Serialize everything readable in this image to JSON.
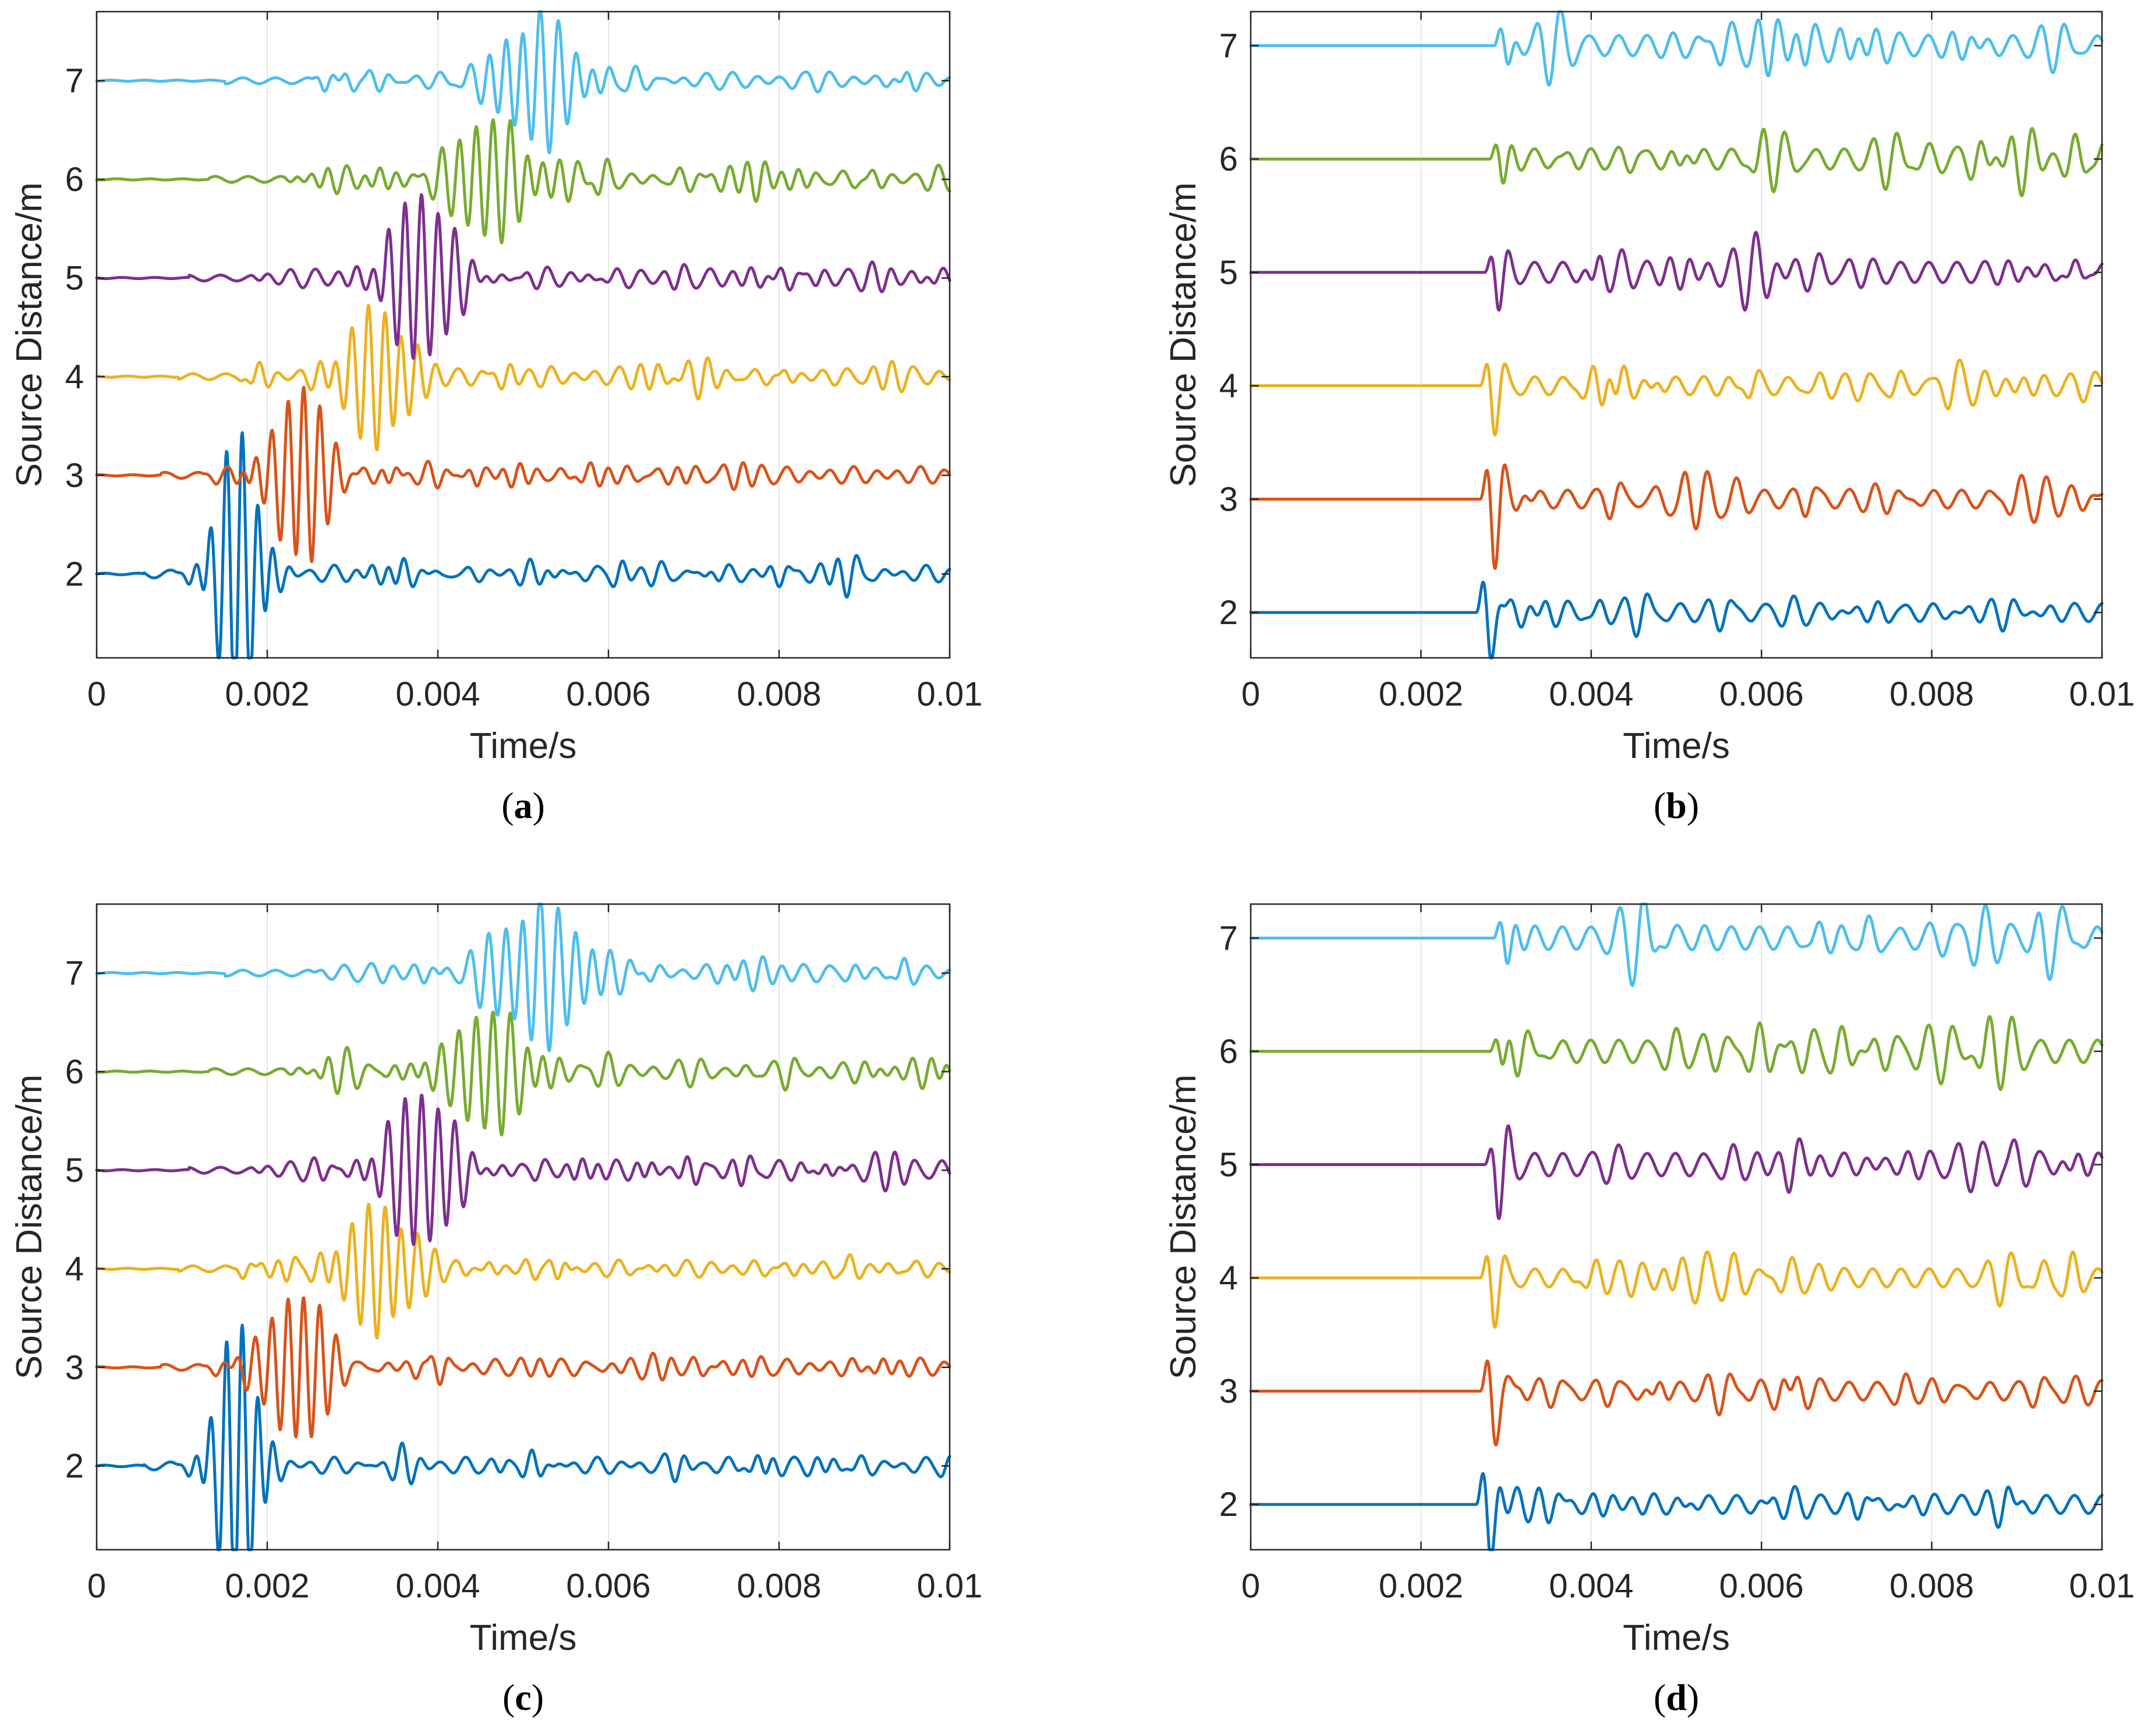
{
  "colors": {
    "series": [
      "#0072BD",
      "#D95319",
      "#EDB120",
      "#7E2F8E",
      "#77AC30",
      "#4DBEEE"
    ],
    "axis": "#262626",
    "grid": "#e6e6e6"
  },
  "chart_data": [
    {
      "panel": "a",
      "type": "line",
      "xlabel": "Time/s",
      "ylabel": "Source Distance/m",
      "xlim": [
        0,
        0.01
      ],
      "ylim": [
        1.15,
        7.7
      ],
      "xticks": [
        0,
        0.002,
        0.004,
        0.006,
        0.008,
        0.01
      ],
      "xtick_labels": [
        "0",
        "0.002",
        "0.004",
        "0.006",
        "0.008",
        "0.01"
      ],
      "yticks": [
        2,
        3,
        4,
        5,
        6,
        7
      ],
      "ytick_labels": [
        "2",
        "3",
        "4",
        "5",
        "6",
        "7"
      ],
      "grid": "x",
      "series": [
        {
          "name": "2 m",
          "offset": 2,
          "onset": 0.00092,
          "peak_time": 0.00165,
          "peak_amp": 1.45,
          "spread": 0.00055,
          "freq": 5400,
          "noise": 0.04,
          "tail_amp": 0.05
        },
        {
          "name": "3 m",
          "offset": 3,
          "onset": 0.00125,
          "peak_time": 0.0024,
          "peak_amp": 0.85,
          "spread": 0.0007,
          "freq": 5300,
          "noise": 0.03,
          "tail_amp": 0.06
        },
        {
          "name": "4 m",
          "offset": 4,
          "onset": 0.0016,
          "peak_time": 0.0033,
          "peak_amp": 0.65,
          "spread": 0.0009,
          "freq": 5200,
          "noise": 0.03,
          "tail_amp": 0.06
        },
        {
          "name": "5 m",
          "offset": 5,
          "onset": 0.0018,
          "peak_time": 0.0038,
          "peak_amp": 0.8,
          "spread": 0.0009,
          "freq": 5100,
          "noise": 0.03,
          "tail_amp": 0.07
        },
        {
          "name": "6 m",
          "offset": 6,
          "onset": 0.0022,
          "peak_time": 0.0046,
          "peak_amp": 0.62,
          "spread": 0.001,
          "freq": 5000,
          "noise": 0.03,
          "tail_amp": 0.07
        },
        {
          "name": "7 m",
          "offset": 7,
          "onset": 0.0025,
          "peak_time": 0.0052,
          "peak_amp": 0.72,
          "spread": 0.0011,
          "freq": 4900,
          "noise": 0.03,
          "tail_amp": 0.06
        }
      ]
    },
    {
      "panel": "b",
      "type": "line",
      "xlabel": "Time/s",
      "ylabel": "Source Distance/m",
      "xlim": [
        0,
        0.01
      ],
      "ylim": [
        1.6,
        7.3
      ],
      "xticks": [
        0,
        0.002,
        0.004,
        0.006,
        0.008,
        0.01
      ],
      "xtick_labels": [
        "0",
        "0.002",
        "0.004",
        "0.006",
        "0.008",
        "0.01"
      ],
      "yticks": [
        2,
        3,
        4,
        5,
        6,
        7
      ],
      "ytick_labels": [
        "2",
        "3",
        "4",
        "5",
        "6",
        "7"
      ],
      "grid": "x",
      "series": [
        {
          "name": "2 m",
          "offset": 2,
          "onset": 0.00265,
          "peak_time": 0.00275,
          "peak_amp": 0.5,
          "spread": 0.0003,
          "freq": 4200,
          "noise": 0.0,
          "tail_amp": 0.08
        },
        {
          "name": "3 m",
          "offset": 3,
          "onset": 0.0027,
          "peak_time": 0.0028,
          "peak_amp": 0.5,
          "spread": 0.0003,
          "freq": 4200,
          "noise": 0.0,
          "tail_amp": 0.08
        },
        {
          "name": "4 m",
          "offset": 4,
          "onset": 0.0027,
          "peak_time": 0.0028,
          "peak_amp": 0.45,
          "spread": 0.0003,
          "freq": 4200,
          "noise": 0.0,
          "tail_amp": 0.08
        },
        {
          "name": "5 m",
          "offset": 5,
          "onset": 0.00275,
          "peak_time": 0.00285,
          "peak_amp": 0.4,
          "spread": 0.0003,
          "freq": 4200,
          "noise": 0.0,
          "tail_amp": 0.09
        },
        {
          "name": "6 m",
          "offset": 6,
          "onset": 0.0028,
          "peak_time": 0.0029,
          "peak_amp": 0.35,
          "spread": 0.0003,
          "freq": 4200,
          "noise": 0.0,
          "tail_amp": 0.09
        },
        {
          "name": "7 m",
          "offset": 7,
          "onset": 0.00285,
          "peak_time": 0.00295,
          "peak_amp": 0.3,
          "spread": 0.0003,
          "freq": 4200,
          "noise": 0.0,
          "tail_amp": 0.09
        }
      ]
    },
    {
      "panel": "c",
      "type": "line",
      "xlabel": "Time/s",
      "ylabel": "Source Distance/m",
      "xlim": [
        0,
        0.01
      ],
      "ylim": [
        1.15,
        7.7
      ],
      "xticks": [
        0,
        0.002,
        0.004,
        0.006,
        0.008,
        0.01
      ],
      "xtick_labels": [
        "0",
        "0.002",
        "0.004",
        "0.006",
        "0.008",
        "0.01"
      ],
      "yticks": [
        2,
        3,
        4,
        5,
        6,
        7
      ],
      "ytick_labels": [
        "2",
        "3",
        "4",
        "5",
        "6",
        "7"
      ],
      "grid": "x",
      "series": [
        {
          "name": "2 m",
          "offset": 2,
          "onset": 0.00092,
          "peak_time": 0.00165,
          "peak_amp": 1.45,
          "spread": 0.00055,
          "freq": 5400,
          "noise": 0.04,
          "tail_amp": 0.05
        },
        {
          "name": "3 m",
          "offset": 3,
          "onset": 0.00125,
          "peak_time": 0.0024,
          "peak_amp": 0.85,
          "spread": 0.0007,
          "freq": 5300,
          "noise": 0.03,
          "tail_amp": 0.06
        },
        {
          "name": "4 m",
          "offset": 4,
          "onset": 0.0016,
          "peak_time": 0.0033,
          "peak_amp": 0.65,
          "spread": 0.0009,
          "freq": 5200,
          "noise": 0.03,
          "tail_amp": 0.06
        },
        {
          "name": "5 m",
          "offset": 5,
          "onset": 0.0018,
          "peak_time": 0.0038,
          "peak_amp": 0.8,
          "spread": 0.0009,
          "freq": 5100,
          "noise": 0.03,
          "tail_amp": 0.07
        },
        {
          "name": "6 m",
          "offset": 6,
          "onset": 0.0022,
          "peak_time": 0.0046,
          "peak_amp": 0.62,
          "spread": 0.001,
          "freq": 5000,
          "noise": 0.03,
          "tail_amp": 0.07
        },
        {
          "name": "7 m",
          "offset": 7,
          "onset": 0.0025,
          "peak_time": 0.0052,
          "peak_amp": 0.72,
          "spread": 0.0011,
          "freq": 4900,
          "noise": 0.03,
          "tail_amp": 0.06
        }
      ]
    },
    {
      "panel": "d",
      "type": "line",
      "xlabel": "Time/s",
      "ylabel": "Source Distance/m",
      "xlim": [
        0,
        0.01
      ],
      "ylim": [
        1.6,
        7.3
      ],
      "xticks": [
        0,
        0.002,
        0.004,
        0.006,
        0.008,
        0.01
      ],
      "xtick_labels": [
        "0",
        "0.002",
        "0.004",
        "0.006",
        "0.008",
        "0.01"
      ],
      "yticks": [
        2,
        3,
        4,
        5,
        6,
        7
      ],
      "ytick_labels": [
        "2",
        "3",
        "4",
        "5",
        "6",
        "7"
      ],
      "grid": "x",
      "series": [
        {
          "name": "2 m",
          "offset": 2,
          "onset": 0.00265,
          "peak_time": 0.00275,
          "peak_amp": 0.5,
          "spread": 0.0003,
          "freq": 4200,
          "noise": 0.0,
          "tail_amp": 0.08
        },
        {
          "name": "3 m",
          "offset": 3,
          "onset": 0.0027,
          "peak_time": 0.0028,
          "peak_amp": 0.5,
          "spread": 0.0003,
          "freq": 4200,
          "noise": 0.0,
          "tail_amp": 0.08
        },
        {
          "name": "4 m",
          "offset": 4,
          "onset": 0.0027,
          "peak_time": 0.0028,
          "peak_amp": 0.45,
          "spread": 0.0003,
          "freq": 4200,
          "noise": 0.0,
          "tail_amp": 0.08
        },
        {
          "name": "5 m",
          "offset": 5,
          "onset": 0.00275,
          "peak_time": 0.00285,
          "peak_amp": 0.4,
          "spread": 0.0003,
          "freq": 4200,
          "noise": 0.0,
          "tail_amp": 0.1
        },
        {
          "name": "6 m",
          "offset": 6,
          "onset": 0.0028,
          "peak_time": 0.0029,
          "peak_amp": 0.35,
          "spread": 0.0003,
          "freq": 4200,
          "noise": 0.0,
          "tail_amp": 0.1
        },
        {
          "name": "7 m",
          "offset": 7,
          "onset": 0.00285,
          "peak_time": 0.00295,
          "peak_amp": 0.3,
          "spread": 0.0003,
          "freq": 4200,
          "noise": 0.0,
          "tail_amp": 0.1
        }
      ]
    }
  ]
}
